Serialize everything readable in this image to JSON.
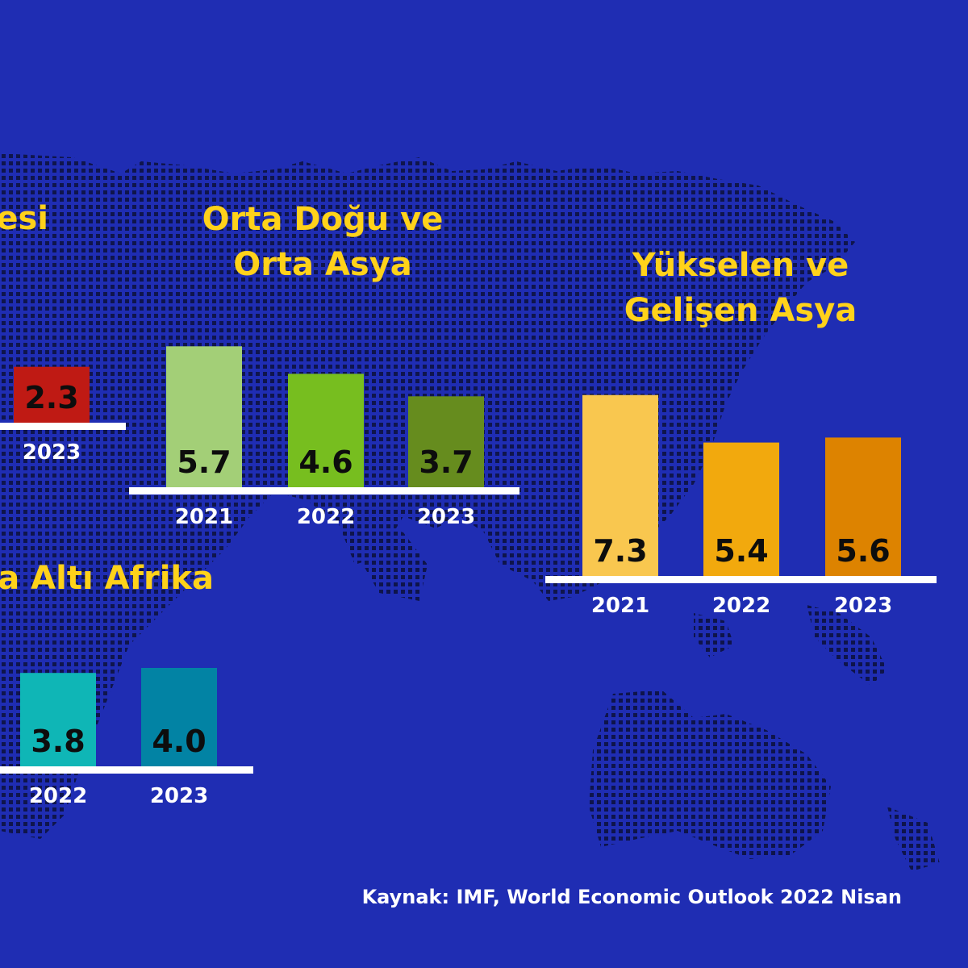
{
  "chart_data": [
    {
      "type": "bar",
      "title": [
        "esi"
      ],
      "categories": [
        "2023"
      ],
      "values": [
        2.3
      ],
      "colors": [
        "#bf1a14"
      ]
    },
    {
      "type": "bar",
      "title": [
        "Orta Doğu ve",
        "Orta Asya"
      ],
      "categories": [
        "2021",
        "2022",
        "2023"
      ],
      "values": [
        5.7,
        4.6,
        3.7
      ],
      "colors": [
        "#a3cf77",
        "#77be1f",
        "#668c1e"
      ]
    },
    {
      "type": "bar",
      "title": [
        "Yükselen ve",
        "Gelişen Asya"
      ],
      "categories": [
        "2021",
        "2022",
        "2023"
      ],
      "values": [
        7.3,
        5.4,
        5.6
      ],
      "colors": [
        "#f9c74f",
        "#f2a90d",
        "#dd8300"
      ]
    },
    {
      "type": "bar",
      "title": [
        "a Altı Afrika"
      ],
      "categories": [
        "2022",
        "2023"
      ],
      "values": [
        3.8,
        4.0
      ],
      "colors": [
        "#0fb6b6",
        "#0283a4"
      ]
    }
  ],
  "source": "Kaynak: IMF, World Economic Outlook 2022 Nisan",
  "colors": {
    "background": "#1f2db3",
    "title": "#ffd21a",
    "baseline": "#ffffff",
    "map_dots": "#0d1240"
  }
}
